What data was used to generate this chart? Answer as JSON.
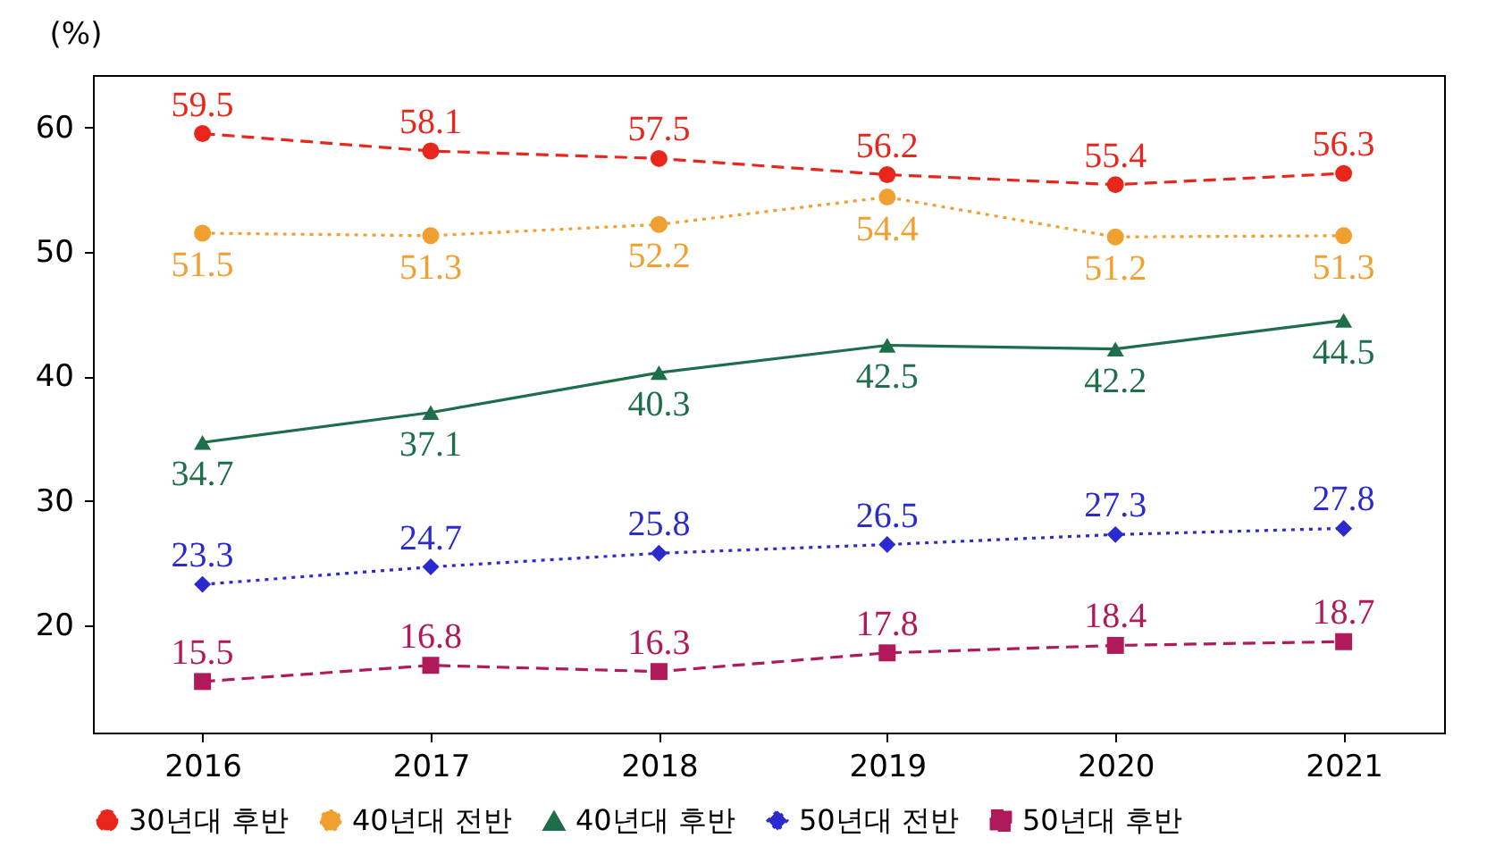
{
  "chart_data": {
    "type": "line",
    "ylabel": "(%)",
    "x": [
      2016,
      2017,
      2018,
      2019,
      2020,
      2021
    ],
    "xlim": [
      2015.52,
      2021.44
    ],
    "xticks": [
      2016,
      2017,
      2018,
      2019,
      2020,
      2021
    ],
    "ylim": [
      11.4,
      64.2
    ],
    "yticks": [
      20,
      30,
      40,
      50,
      60
    ],
    "grid": false,
    "legend": "bottom",
    "data_labels": true,
    "series": [
      {
        "name": "30년대 후반",
        "color": "#e8261c",
        "marker": "circle",
        "line_style": "dashed",
        "values": [
          59.5,
          58.1,
          57.5,
          56.2,
          55.4,
          56.3
        ]
      },
      {
        "name": "40년대 전반",
        "color": "#f0a030",
        "marker": "circle",
        "line_style": "dotted",
        "values": [
          51.5,
          51.3,
          52.2,
          54.4,
          51.2,
          51.3
        ]
      },
      {
        "name": "40년대 후반",
        "color": "#1f6e4a",
        "marker": "triangle",
        "line_style": "solid",
        "values": [
          34.7,
          37.1,
          40.3,
          42.5,
          42.2,
          44.5
        ]
      },
      {
        "name": "50년대 전반",
        "color": "#2a2ad0",
        "marker": "diamond",
        "line_style": "dotted",
        "values": [
          23.3,
          24.7,
          25.8,
          26.5,
          27.3,
          27.8
        ]
      },
      {
        "name": "50년대 후반",
        "color": "#b0195a",
        "marker": "square",
        "line_style": "dashed",
        "values": [
          15.5,
          16.8,
          16.3,
          17.8,
          18.4,
          18.7
        ]
      }
    ]
  }
}
